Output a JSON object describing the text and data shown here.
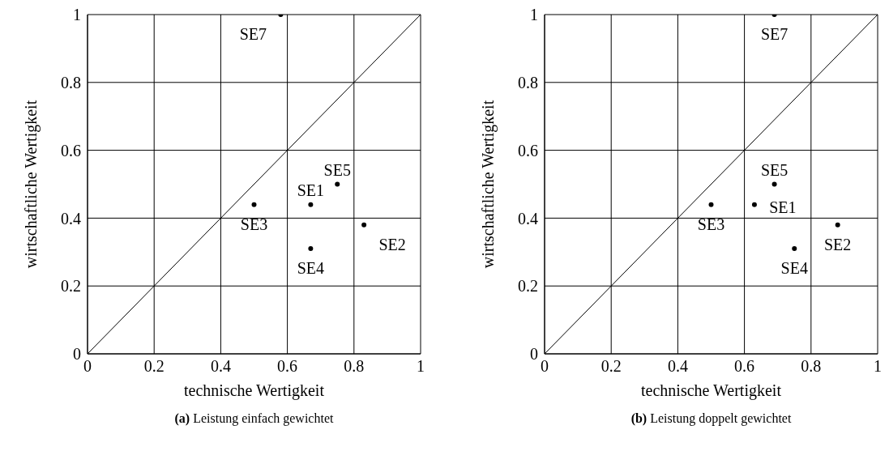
{
  "chart_data": [
    {
      "type": "scatter",
      "title": "(a) Leistung einfach gewichtet",
      "xlabel": "technische Wertigkeit",
      "ylabel": "wirtschaftliche Wertigkeit",
      "xlim": [
        0,
        1
      ],
      "ylim": [
        0,
        1
      ],
      "xticks": [
        0,
        0.2,
        0.4,
        0.6,
        0.8,
        1
      ],
      "yticks": [
        0,
        0.2,
        0.4,
        0.6,
        0.8,
        1
      ],
      "grid": true,
      "marker": "circle",
      "series": [
        {
          "type": "line",
          "x": [
            0,
            1
          ],
          "values": [
            0,
            1
          ],
          "color": "#000000",
          "marker": "none"
        },
        {
          "name": "SE1",
          "x": [
            0.67
          ],
          "values": [
            0.44
          ],
          "color": "#000000"
        },
        {
          "name": "SE2",
          "x": [
            0.83
          ],
          "values": [
            0.38
          ],
          "color": "#000000"
        },
        {
          "name": "SE3",
          "x": [
            0.5
          ],
          "values": [
            0.44
          ],
          "color": "#000000"
        },
        {
          "name": "SE4",
          "x": [
            0.67
          ],
          "values": [
            0.31
          ],
          "color": "#000000"
        },
        {
          "name": "SE5",
          "x": [
            0.75
          ],
          "values": [
            0.5
          ],
          "color": "#000000"
        },
        {
          "name": "SE7",
          "x": [
            0.58
          ],
          "values": [
            1
          ],
          "color": "#000000"
        }
      ]
    },
    {
      "type": "scatter",
      "title": "(b) Leistung doppelt gewichtet",
      "xlabel": "technische Wertigkeit",
      "ylabel": "wirtschaftliche Wertigkeit",
      "xlim": [
        0,
        1
      ],
      "ylim": [
        0,
        1
      ],
      "xticks": [
        0,
        0.2,
        0.4,
        0.6,
        0.8,
        1
      ],
      "yticks": [
        0,
        0.2,
        0.4,
        0.6,
        0.8,
        1
      ],
      "grid": true,
      "marker": "circle",
      "series": [
        {
          "type": "line",
          "x": [
            0,
            1
          ],
          "values": [
            0,
            1
          ],
          "color": "#000000",
          "marker": "none"
        },
        {
          "name": "SE1",
          "x": [
            0.63
          ],
          "values": [
            0.44
          ],
          "color": "#000000"
        },
        {
          "name": "SE2",
          "x": [
            0.88
          ],
          "values": [
            0.38
          ],
          "color": "#000000"
        },
        {
          "name": "SE3",
          "x": [
            0.5
          ],
          "values": [
            0.44
          ],
          "color": "#000000"
        },
        {
          "name": "SE4",
          "x": [
            0.75
          ],
          "values": [
            0.31
          ],
          "color": "#000000"
        },
        {
          "name": "SE5",
          "x": [
            0.69
          ],
          "values": [
            0.5
          ],
          "color": "#000000"
        },
        {
          "name": "SE7",
          "x": [
            0.69
          ],
          "values": [
            1
          ],
          "color": "#000000"
        }
      ]
    }
  ]
}
